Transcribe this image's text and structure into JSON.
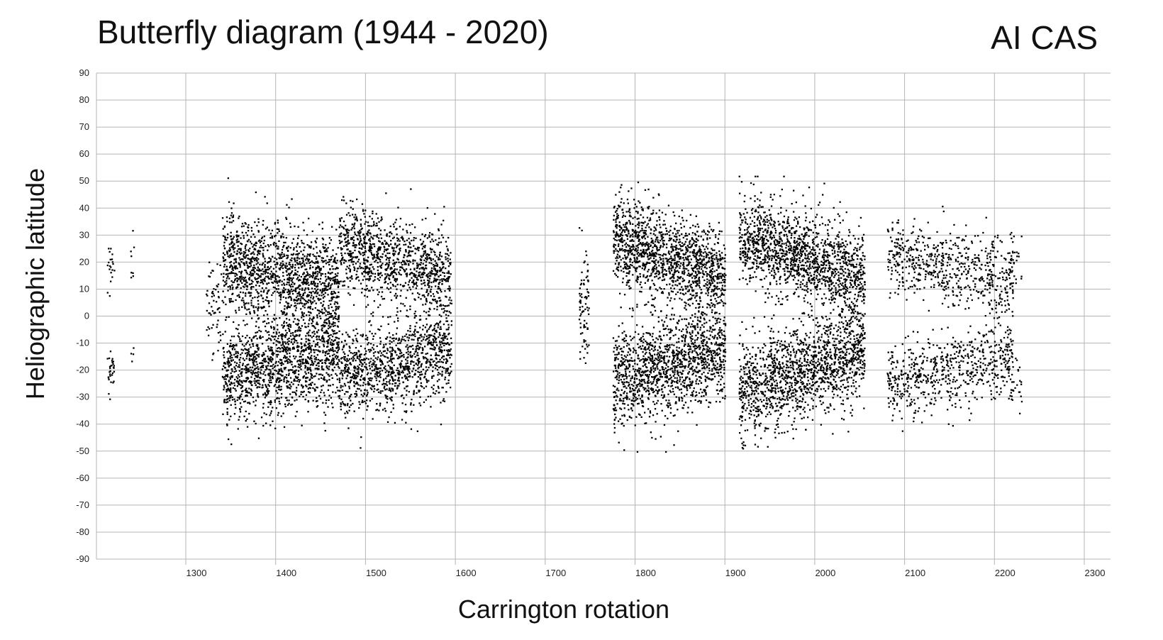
{
  "title": "Butterfly diagram (1944 - 2020)",
  "organization": "AI CAS",
  "chart_data": {
    "type": "scatter",
    "title": "Butterfly diagram (1944 - 2020)",
    "xlabel": "Carrington rotation",
    "ylabel": "Heliographic latitude",
    "xlim": [
      1200,
      2330
    ],
    "ylim": [
      -90,
      90
    ],
    "x_ticks": [
      1300,
      1400,
      1500,
      1600,
      1700,
      1800,
      1900,
      2000,
      2100,
      2200,
      2300
    ],
    "y_ticks": [
      90,
      80,
      70,
      60,
      50,
      40,
      30,
      20,
      10,
      0,
      -10,
      -20,
      -30,
      -40,
      -50,
      -60,
      -70,
      -80,
      -90
    ],
    "grid": true,
    "marker_color": "#000000",
    "grid_color": "#b4b4b4",
    "clusters": [
      {
        "x_range": [
          1212,
          1220
        ],
        "lat_center": 20,
        "lat_spread": 4,
        "count": 20
      },
      {
        "x_range": [
          1212,
          1220
        ],
        "lat_center": -20,
        "lat_spread": 5,
        "count": 30
      },
      {
        "x_range": [
          1238,
          1242
        ],
        "lat_center": 20,
        "lat_spread": 4,
        "count": 8
      },
      {
        "x_range": [
          1238,
          1242
        ],
        "lat_center": -15,
        "lat_spread": 2,
        "count": 4
      },
      {
        "x_range": [
          1322,
          1340
        ],
        "lat_center": 5,
        "lat_spread": 9,
        "count": 60
      },
      {
        "x_range": [
          1340,
          1470
        ],
        "lat_center": 16,
        "lat_spread": 9,
        "drift": -10,
        "count": 1400
      },
      {
        "x_range": [
          1340,
          1470
        ],
        "lat_center": -17,
        "lat_spread": 9,
        "drift": 10,
        "count": 1400
      },
      {
        "x_range": [
          1470,
          1595
        ],
        "lat_center": 20,
        "lat_spread": 8,
        "drift": -12,
        "count": 1100
      },
      {
        "x_range": [
          1470,
          1595
        ],
        "lat_center": -18,
        "lat_spread": 8,
        "drift": 10,
        "count": 1100
      },
      {
        "x_range": [
          1737,
          1748
        ],
        "lat_center": 3,
        "lat_spread": 12,
        "count": 80
      },
      {
        "x_range": [
          1775,
          1900
        ],
        "lat_center": 22,
        "lat_spread": 8,
        "drift": -15,
        "count": 1400
      },
      {
        "x_range": [
          1775,
          1900
        ],
        "lat_center": -18,
        "lat_spread": 9,
        "drift": 10,
        "count": 1400
      },
      {
        "x_range": [
          1915,
          2055
        ],
        "lat_center": 22,
        "lat_spread": 8,
        "drift": -16,
        "count": 1500
      },
      {
        "x_range": [
          1915,
          2055
        ],
        "lat_center": -20,
        "lat_spread": 9,
        "drift": 15,
        "count": 1500
      },
      {
        "x_range": [
          2080,
          2220
        ],
        "lat_center": 18,
        "lat_spread": 7,
        "drift": -10,
        "count": 650
      },
      {
        "x_range": [
          2080,
          2220
        ],
        "lat_center": -20,
        "lat_spread": 7,
        "drift": 10,
        "count": 650
      },
      {
        "x_range": [
          2215,
          2230
        ],
        "lat_center": 20,
        "lat_spread": 6,
        "count": 25
      },
      {
        "x_range": [
          2215,
          2230
        ],
        "lat_center": -25,
        "lat_spread": 6,
        "count": 25
      }
    ]
  }
}
